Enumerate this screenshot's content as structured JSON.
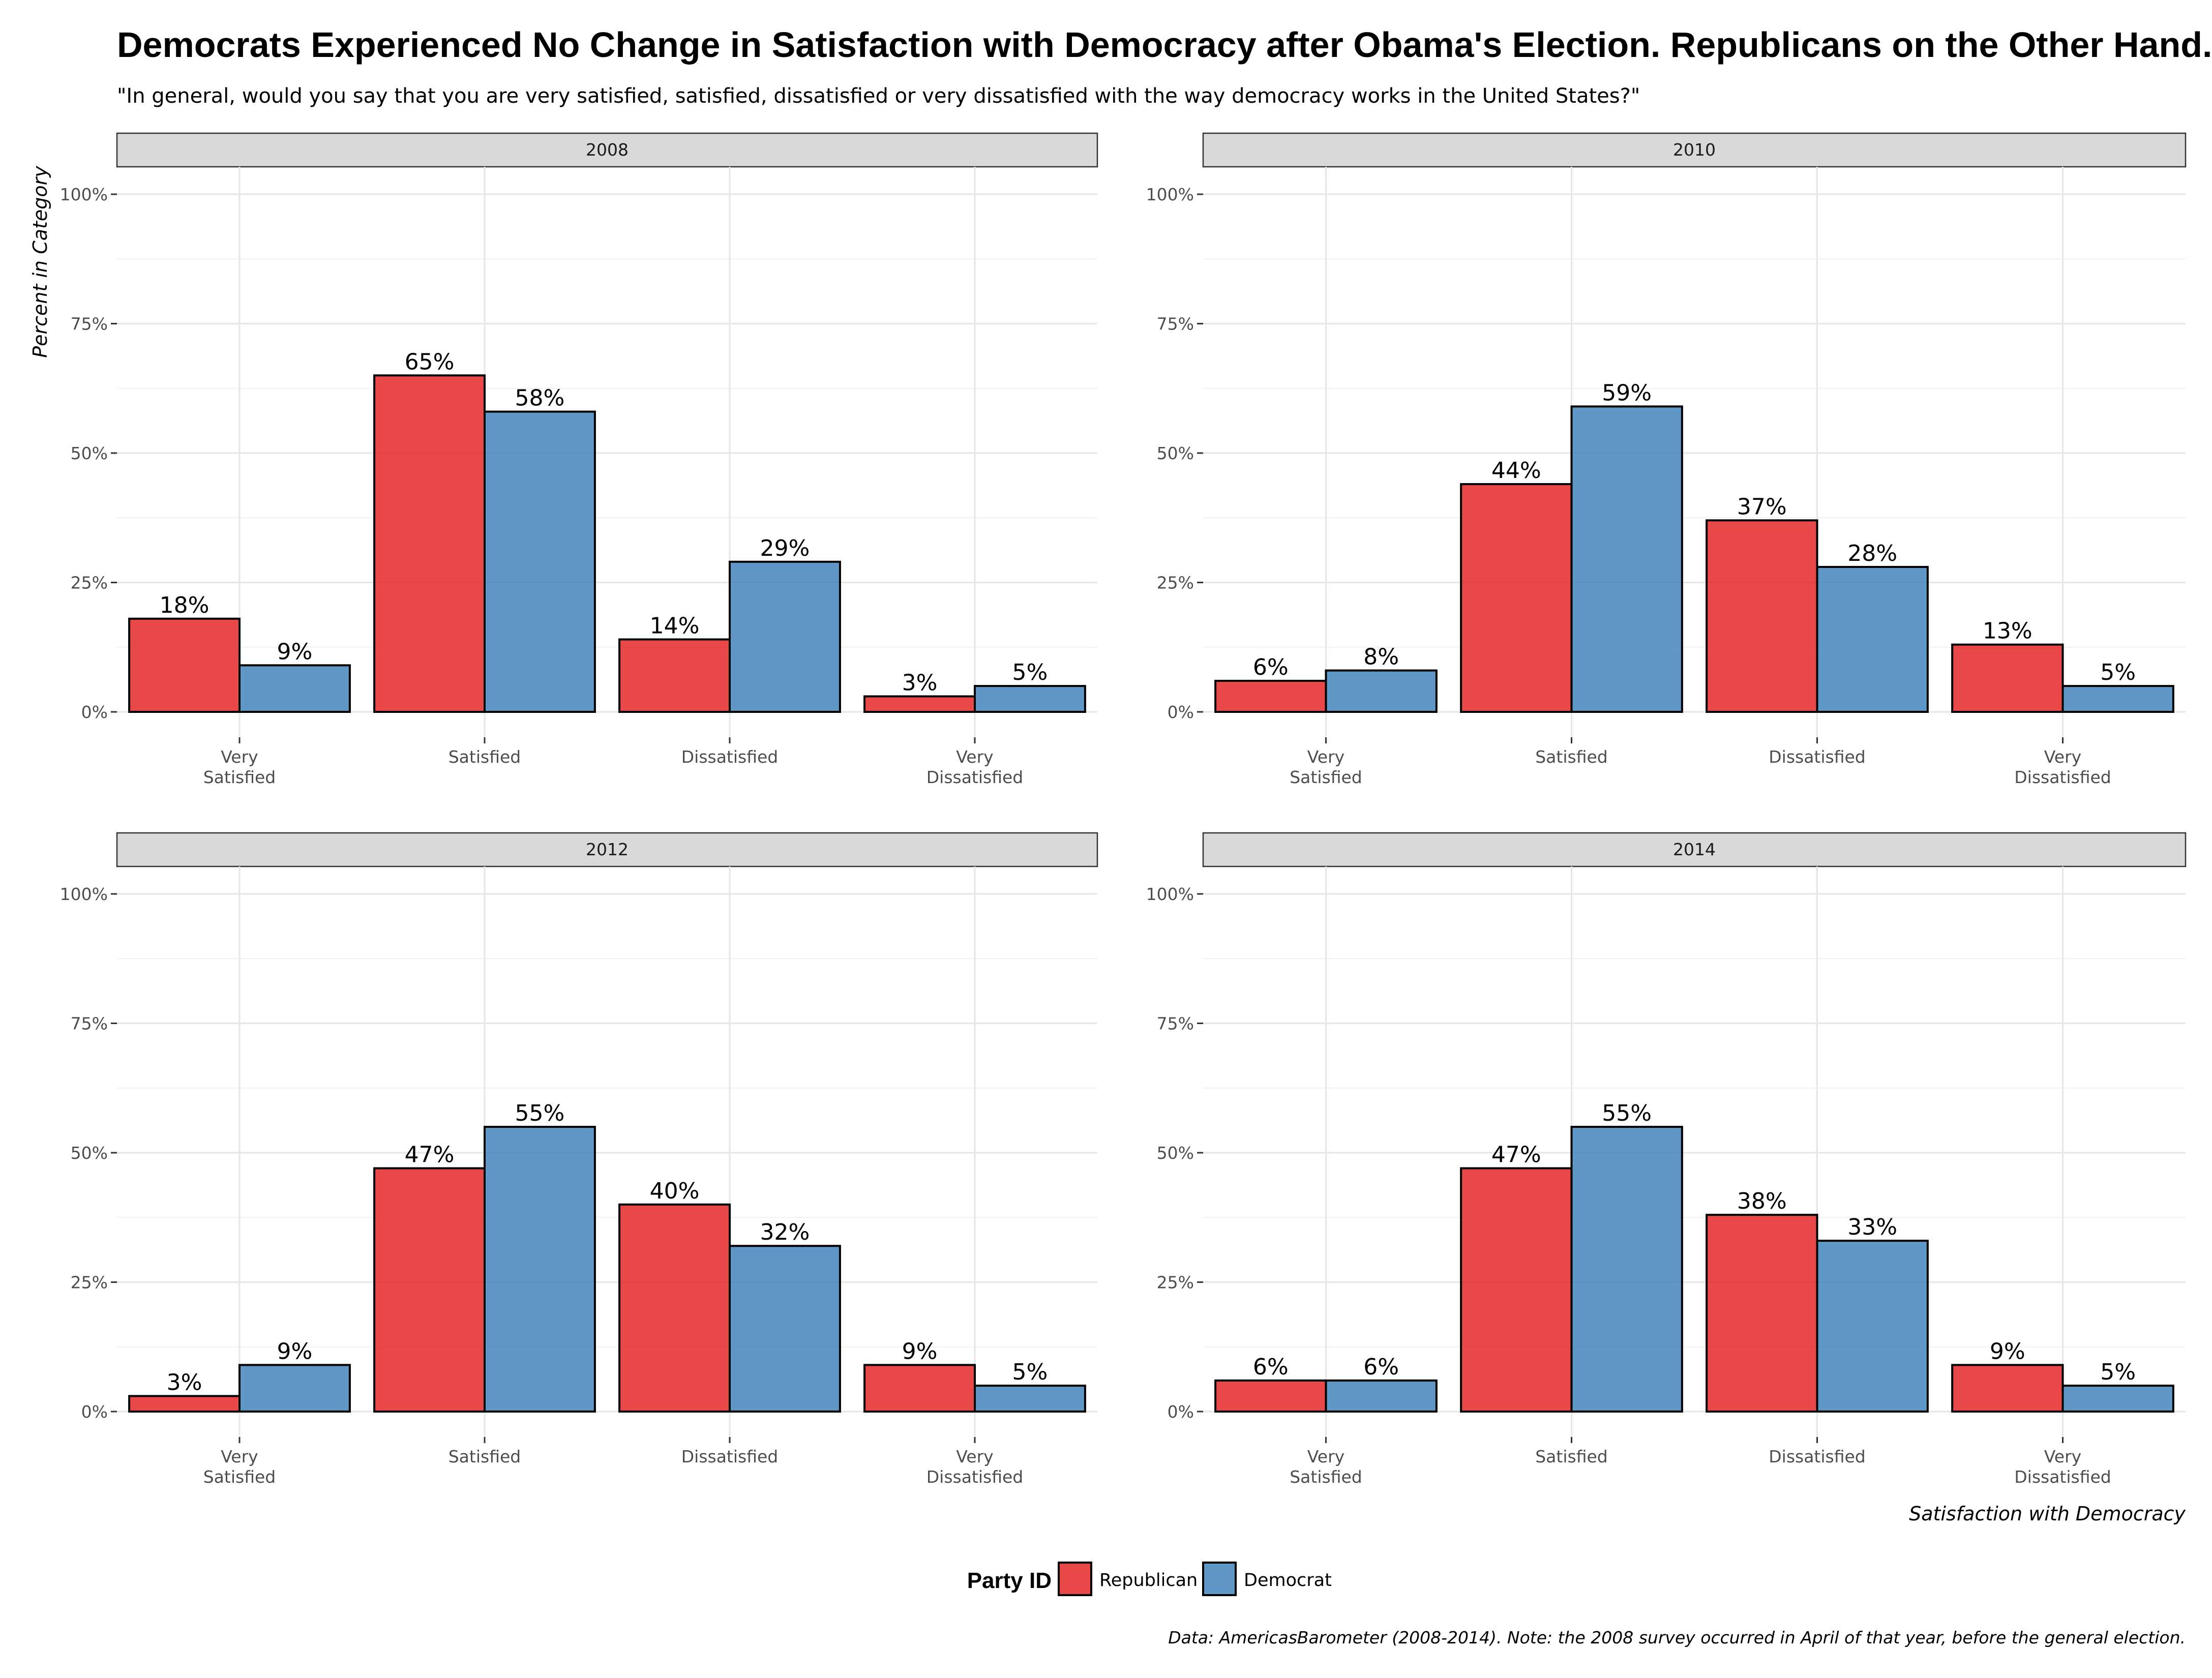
{
  "chart_data": {
    "type": "bar",
    "title": "Democrats Experienced No Change in Satisfaction with Democracy after Obama's Election. Republicans on the Other Hand...",
    "subtitle": "\"In general, would you say that you are very satisfied, satisfied, dissatisfied or very dissatisfied with the way democracy works in the United States?\"",
    "ylabel": "Percent in Category",
    "xlabel": "Satisfaction with Democracy",
    "caption": "Data: AmericasBarometer (2008-2014). Note: the 2008 survey occurred in April of that year, before the general election.",
    "y_ticks": [
      "0%",
      "25%",
      "50%",
      "75%",
      "100%"
    ],
    "ylim": [
      0,
      100
    ],
    "grid": true,
    "categories": [
      [
        "Very",
        "Satisfied"
      ],
      [
        "Satisfied"
      ],
      [
        "Dissatisfied"
      ],
      [
        "Very",
        "Dissatisfied"
      ]
    ],
    "legend": {
      "title": "Party ID",
      "position": "bottom",
      "items": [
        {
          "name": "Republican",
          "color": "#e41a1c"
        },
        {
          "name": "Democrat",
          "color": "#377eb8"
        }
      ]
    },
    "panels": [
      {
        "label": "2008",
        "series": [
          {
            "name": "Republican",
            "values": [
              18,
              65,
              14,
              3
            ],
            "labels": [
              "18%",
              "65%",
              "14%",
              "3%"
            ]
          },
          {
            "name": "Democrat",
            "values": [
              9,
              58,
              29,
              5
            ],
            "labels": [
              "9%",
              "58%",
              "29%",
              "5%"
            ]
          }
        ]
      },
      {
        "label": "2010",
        "series": [
          {
            "name": "Republican",
            "values": [
              6,
              44,
              37,
              13
            ],
            "labels": [
              "6%",
              "44%",
              "37%",
              "13%"
            ]
          },
          {
            "name": "Democrat",
            "values": [
              8,
              59,
              28,
              5
            ],
            "labels": [
              "8%",
              "59%",
              "28%",
              "5%"
            ]
          }
        ]
      },
      {
        "label": "2012",
        "series": [
          {
            "name": "Republican",
            "values": [
              3,
              47,
              40,
              9
            ],
            "labels": [
              "3%",
              "47%",
              "40%",
              "9%"
            ]
          },
          {
            "name": "Democrat",
            "values": [
              9,
              55,
              32,
              5
            ],
            "labels": [
              "9%",
              "55%",
              "32%",
              "5%"
            ]
          }
        ]
      },
      {
        "label": "2014",
        "series": [
          {
            "name": "Republican",
            "values": [
              6,
              47,
              38,
              9
            ],
            "labels": [
              "6%",
              "47%",
              "38%",
              "9%"
            ]
          },
          {
            "name": "Democrat",
            "values": [
              6,
              55,
              33,
              5
            ],
            "labels": [
              "6%",
              "55%",
              "33%",
              "5%"
            ]
          }
        ]
      }
    ]
  }
}
